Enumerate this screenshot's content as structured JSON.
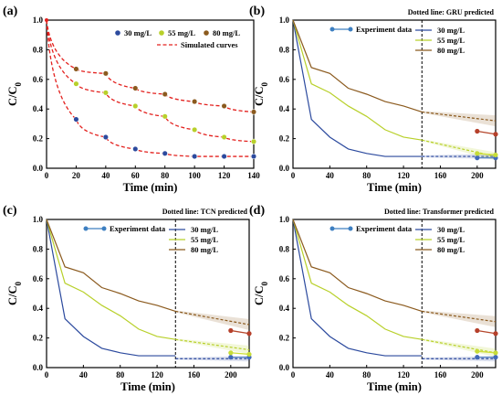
{
  "colors": {
    "c30": "#2c4a9e",
    "c55": "#b8d02a",
    "c80": "#8b5a1e",
    "sim": "#e3211e",
    "exp30": "#5b86c4",
    "exp55": "#cfe03a",
    "exp80": "#b5472c",
    "expd30": "#4169b8",
    "expd55": "#c6dc38",
    "expd80": "#b6402b",
    "legend_exp": "#3d7fc1"
  },
  "chart_data": [
    {
      "panel": "(a)",
      "type": "scatter",
      "xlabel": "Time (min)",
      "ylabel": "C/C0",
      "xlim": [
        0,
        140
      ],
      "ylim": [
        0,
        1.0
      ],
      "xticks": [
        "0",
        "20",
        "40",
        "60",
        "80",
        "100",
        "120",
        "140"
      ],
      "yticks": [
        "0.0",
        "0.2",
        "0.4",
        "0.6",
        "0.8",
        "1.0"
      ],
      "legend": [
        "30 mg/L",
        "55 mg/L",
        "80 mg/L",
        "Simulated curves"
      ],
      "series": [
        {
          "name": "30 mg/L",
          "x": [
            20,
            40,
            60,
            80,
            100,
            120,
            140
          ],
          "y": [
            0.33,
            0.21,
            0.13,
            0.1,
            0.08,
            0.08,
            0.08
          ]
        },
        {
          "name": "55 mg/L",
          "x": [
            20,
            40,
            60,
            80,
            100,
            120,
            140
          ],
          "y": [
            0.57,
            0.51,
            0.42,
            0.35,
            0.26,
            0.21,
            0.18
          ]
        },
        {
          "name": "80 mg/L",
          "x": [
            20,
            40,
            60,
            80,
            100,
            120,
            140
          ],
          "y": [
            0.67,
            0.64,
            0.54,
            0.5,
            0.45,
            0.42,
            0.38
          ]
        }
      ]
    },
    {
      "panel": "(b)",
      "type": "line",
      "note": "Dotted line: GRU predicted",
      "xlabel": "Time (min)",
      "ylabel": "C/C0",
      "xlim": [
        0,
        220
      ],
      "ylim": [
        0,
        1.0
      ],
      "xticks": [
        "0",
        "40",
        "80",
        "120",
        "160",
        "200"
      ],
      "yticks": [
        "0.0",
        "0.2",
        "0.4",
        "0.6",
        "0.8",
        "1.0"
      ],
      "legend": [
        "Experiment data",
        "30 mg/L",
        "55 mg/L",
        "80 mg/L"
      ],
      "series": [
        {
          "name": "30 mg/L",
          "x": [
            0,
            20,
            40,
            60,
            80,
            100,
            120,
            140
          ],
          "y": [
            1.0,
            0.33,
            0.21,
            0.13,
            0.1,
            0.08,
            0.08,
            0.08
          ]
        },
        {
          "name": "55 mg/L",
          "x": [
            0,
            20,
            40,
            60,
            80,
            100,
            120,
            140
          ],
          "y": [
            1.0,
            0.57,
            0.51,
            0.42,
            0.35,
            0.26,
            0.21,
            0.19
          ]
        },
        {
          "name": "80 mg/L",
          "x": [
            0,
            20,
            40,
            60,
            80,
            100,
            120,
            140
          ],
          "y": [
            1.0,
            0.68,
            0.64,
            0.54,
            0.5,
            0.45,
            0.42,
            0.38
          ]
        }
      ],
      "predicted": [
        {
          "name": "30 mg/L",
          "x": [
            140,
            220
          ],
          "y": [
            0.08,
            0.08
          ]
        },
        {
          "name": "55 mg/L",
          "x": [
            140,
            220
          ],
          "y": [
            0.19,
            0.08
          ]
        },
        {
          "name": "80 mg/L",
          "x": [
            140,
            220
          ],
          "y": [
            0.38,
            0.32
          ]
        }
      ],
      "experiment": [
        {
          "name": "30 mg/L",
          "x": [
            200,
            220
          ],
          "y": [
            0.07,
            0.07
          ]
        },
        {
          "name": "55 mg/L",
          "x": [
            200,
            220
          ],
          "y": [
            0.1,
            0.09
          ]
        },
        {
          "name": "80 mg/L",
          "x": [
            200,
            220
          ],
          "y": [
            0.25,
            0.23
          ]
        }
      ]
    },
    {
      "panel": "(c)",
      "type": "line",
      "note": "Dotted line: TCN predicted",
      "xlabel": "Time (min)",
      "ylabel": "C/C0",
      "xlim": [
        0,
        220
      ],
      "ylim": [
        0,
        1.0
      ],
      "xticks": [
        "0",
        "40",
        "80",
        "120",
        "160",
        "200"
      ],
      "yticks": [
        "0.0",
        "0.2",
        "0.4",
        "0.6",
        "0.8",
        "1.0"
      ],
      "legend": [
        "Experiment data",
        "30 mg/L",
        "55 mg/L",
        "80 mg/L"
      ],
      "series": [
        {
          "name": "30 mg/L",
          "x": [
            0,
            20,
            40,
            60,
            80,
            100,
            120,
            140
          ],
          "y": [
            1.0,
            0.33,
            0.21,
            0.13,
            0.1,
            0.08,
            0.08,
            0.08
          ]
        },
        {
          "name": "55 mg/L",
          "x": [
            0,
            20,
            40,
            60,
            80,
            100,
            120,
            140
          ],
          "y": [
            1.0,
            0.57,
            0.51,
            0.42,
            0.35,
            0.26,
            0.21,
            0.19
          ]
        },
        {
          "name": "80 mg/L",
          "x": [
            0,
            20,
            40,
            60,
            80,
            100,
            120,
            140
          ],
          "y": [
            1.0,
            0.68,
            0.64,
            0.54,
            0.5,
            0.45,
            0.42,
            0.38
          ]
        }
      ],
      "predicted": [
        {
          "name": "30 mg/L",
          "x": [
            140,
            220
          ],
          "y": [
            0.06,
            0.06
          ]
        },
        {
          "name": "55 mg/L",
          "x": [
            140,
            220
          ],
          "y": [
            0.19,
            0.12
          ]
        },
        {
          "name": "80 mg/L",
          "x": [
            140,
            220
          ],
          "y": [
            0.38,
            0.29
          ]
        }
      ],
      "experiment": [
        {
          "name": "30 mg/L",
          "x": [
            200,
            220
          ],
          "y": [
            0.07,
            0.07
          ]
        },
        {
          "name": "55 mg/L",
          "x": [
            200,
            220
          ],
          "y": [
            0.1,
            0.09
          ]
        },
        {
          "name": "80 mg/L",
          "x": [
            200,
            220
          ],
          "y": [
            0.25,
            0.23
          ]
        }
      ]
    },
    {
      "panel": "(d)",
      "type": "line",
      "note": "Dotted line: Transformer predicted",
      "xlabel": "Time (min)",
      "ylabel": "C/C0",
      "xlim": [
        0,
        220
      ],
      "ylim": [
        0,
        1.0
      ],
      "xticks": [
        "0",
        "40",
        "80",
        "120",
        "160",
        "200"
      ],
      "yticks": [
        "0.0",
        "0.2",
        "0.4",
        "0.6",
        "0.8",
        "1.0"
      ],
      "legend": [
        "Experiment data",
        "30 mg/L",
        "55 mg/L",
        "80 mg/L"
      ],
      "series": [
        {
          "name": "30 mg/L",
          "x": [
            0,
            20,
            40,
            60,
            80,
            100,
            120,
            140
          ],
          "y": [
            1.0,
            0.33,
            0.21,
            0.13,
            0.1,
            0.08,
            0.08,
            0.08
          ]
        },
        {
          "name": "55 mg/L",
          "x": [
            0,
            20,
            40,
            60,
            80,
            100,
            120,
            140
          ],
          "y": [
            1.0,
            0.57,
            0.51,
            0.42,
            0.35,
            0.26,
            0.21,
            0.19
          ]
        },
        {
          "name": "80 mg/L",
          "x": [
            0,
            20,
            40,
            60,
            80,
            100,
            120,
            140
          ],
          "y": [
            1.0,
            0.68,
            0.64,
            0.54,
            0.5,
            0.45,
            0.42,
            0.38
          ]
        }
      ],
      "predicted": [
        {
          "name": "30 mg/L",
          "x": [
            140,
            220
          ],
          "y": [
            0.06,
            0.06
          ]
        },
        {
          "name": "55 mg/L",
          "x": [
            140,
            220
          ],
          "y": [
            0.19,
            0.1
          ]
        },
        {
          "name": "80 mg/L",
          "x": [
            140,
            220
          ],
          "y": [
            0.38,
            0.31
          ]
        }
      ],
      "experiment": [
        {
          "name": "30 mg/L",
          "x": [
            200,
            220
          ],
          "y": [
            0.07,
            0.07
          ]
        },
        {
          "name": "55 mg/L",
          "x": [
            200,
            220
          ],
          "y": [
            0.11,
            0.1
          ]
        },
        {
          "name": "80 mg/L",
          "x": [
            200,
            220
          ],
          "y": [
            0.25,
            0.23
          ]
        }
      ]
    }
  ]
}
